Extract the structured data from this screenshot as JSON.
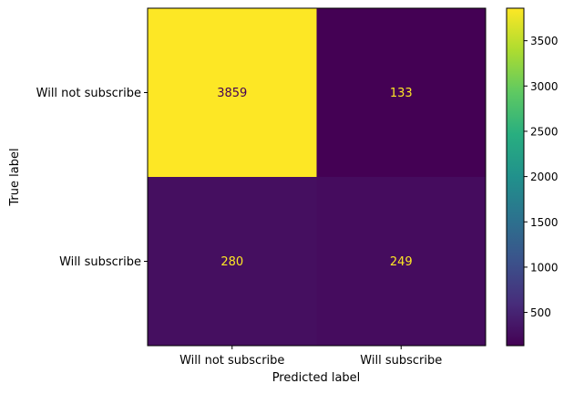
{
  "chart_data": {
    "type": "heatmap",
    "xlabel": "Predicted label",
    "ylabel": "True label",
    "x_categories": [
      "Will not subscribe",
      "Will subscribe"
    ],
    "y_categories": [
      "Will not subscribe",
      "Will subscribe"
    ],
    "matrix": [
      [
        3859,
        133
      ],
      [
        280,
        249
      ]
    ],
    "matrix_labels": [
      [
        "3859",
        "133"
      ],
      [
        "280",
        "249"
      ]
    ],
    "colormap": "viridis",
    "colorbar": {
      "range": [
        133,
        3859
      ],
      "ticks": [
        500,
        1000,
        1500,
        2000,
        2500,
        3000,
        3500
      ],
      "tick_labels": [
        "500",
        "1000",
        "1500",
        "2000",
        "2500",
        "3000",
        "3500"
      ]
    },
    "text_colors": {
      "on_dark": "#fde725",
      "on_light": "#440154"
    }
  }
}
